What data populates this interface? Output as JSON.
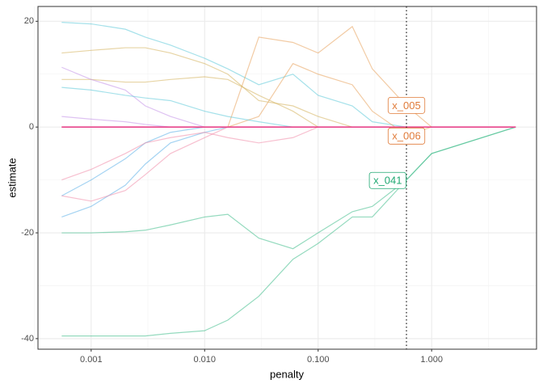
{
  "chart_data": {
    "type": "line",
    "x_label": "penalty",
    "y_label": "estimate",
    "xlog": true,
    "grid": true,
    "xlim": [
      0.00034,
      8.4
    ],
    "ylim": [
      -42,
      22.8
    ],
    "xticks": [
      0.001,
      {
        "value": 0.01,
        "label": "0.010"
      },
      {
        "value": 0.1,
        "label": "0.100"
      },
      {
        "value": 1,
        "label": "1.000"
      }
    ],
    "xminorticks": [
      0.000316,
      0.00316,
      0.0316,
      0.316,
      3.16
    ],
    "yticks": [
      20,
      0,
      -20,
      -40
    ],
    "yminorticks": [
      10,
      -10,
      -30
    ],
    "vline": 0.6,
    "x": [
      0.00055,
      0.001,
      0.002,
      0.003,
      0.005,
      0.01,
      0.016,
      0.03,
      0.06,
      0.1,
      0.2,
      0.3,
      0.6,
      1,
      5.5
    ],
    "series": [
      {
        "color": "#5bc8d9",
        "values": [
          19.8,
          19.5,
          18.5,
          17,
          15.5,
          13,
          11,
          8,
          10,
          6,
          4,
          1,
          0,
          0,
          0
        ]
      },
      {
        "color": "#3dbb88",
        "values": [
          -39.5,
          -39.5,
          -39.5,
          -39.5,
          -39,
          -38.5,
          -36.5,
          -32,
          -25,
          -22,
          -17,
          -17,
          -10,
          -5,
          0
        ]
      },
      {
        "color": "#3dbb88",
        "values": [
          -20,
          -20,
          -19.8,
          -19.5,
          -18.5,
          -17,
          -16.5,
          -21,
          -23,
          -20,
          -16,
          -15,
          -10,
          -5,
          0
        ]
      },
      {
        "color": "#e8a15a",
        "values": [
          0,
          0,
          0,
          0,
          0,
          0,
          0,
          17,
          16,
          14,
          19,
          11,
          4,
          0,
          0
        ]
      },
      {
        "color": "#e8a15a",
        "values": [
          0,
          0,
          0,
          0,
          0,
          0,
          0,
          2,
          12,
          10,
          8,
          3,
          -1.5,
          0,
          0
        ]
      },
      {
        "color": "#d4b15a",
        "values": [
          14,
          14.5,
          15,
          15,
          14,
          12,
          10,
          5,
          4,
          2,
          0,
          0,
          0,
          0,
          0
        ]
      },
      {
        "color": "#d4b15a",
        "values": [
          9,
          9,
          8.5,
          8.5,
          9,
          9.5,
          9,
          6,
          3,
          0,
          0,
          0,
          0,
          0,
          0
        ]
      },
      {
        "color": "#c38fe8",
        "values": [
          11.3,
          9,
          7,
          4,
          2,
          0,
          0,
          0,
          0,
          0,
          0,
          0,
          0,
          0,
          0
        ]
      },
      {
        "color": "#5aaee8",
        "values": [
          -17,
          -15,
          -11,
          -7,
          -3,
          -1,
          0,
          0,
          0,
          0,
          0,
          0,
          0,
          0,
          0
        ]
      },
      {
        "color": "#5aaee8",
        "values": [
          -13,
          -10,
          -6,
          -3,
          -1,
          0,
          0,
          0,
          0,
          0,
          0,
          0,
          0,
          0,
          0
        ]
      },
      {
        "color": "#f08aa8",
        "values": [
          -10,
          -8,
          -5,
          -3,
          -2,
          -1,
          -2,
          -3,
          -2,
          0,
          0,
          0,
          0,
          0,
          0
        ]
      },
      {
        "color": "#f08aa8",
        "values": [
          -13,
          -14,
          -12,
          -9,
          -5,
          -2,
          0,
          0,
          0,
          0,
          0,
          0,
          0,
          0,
          0
        ]
      },
      {
        "color": "#5bc8d9",
        "values": [
          7.5,
          7,
          6,
          5.5,
          5,
          3,
          2,
          1,
          0,
          0,
          0,
          0,
          0,
          0,
          0
        ]
      },
      {
        "color": "#c38fe8",
        "values": [
          2,
          1.5,
          1,
          0.5,
          0,
          0,
          0,
          0,
          0,
          0,
          0,
          0,
          0,
          0,
          0
        ]
      },
      {
        "color": "#e8458b",
        "values": [
          0,
          0,
          0,
          0,
          0,
          0,
          0,
          0,
          0,
          0,
          0,
          0,
          0,
          0,
          0
        ]
      }
    ],
    "annotations": [
      {
        "text": "x_005",
        "x": 0.6,
        "y": 4.1,
        "color": "#e07b39"
      },
      {
        "text": "x_006",
        "x": 0.6,
        "y": -1.7,
        "color": "#e07b39"
      },
      {
        "text": "x_041",
        "x": 0.41,
        "y": -10.1,
        "color": "#1fa872"
      }
    ]
  }
}
